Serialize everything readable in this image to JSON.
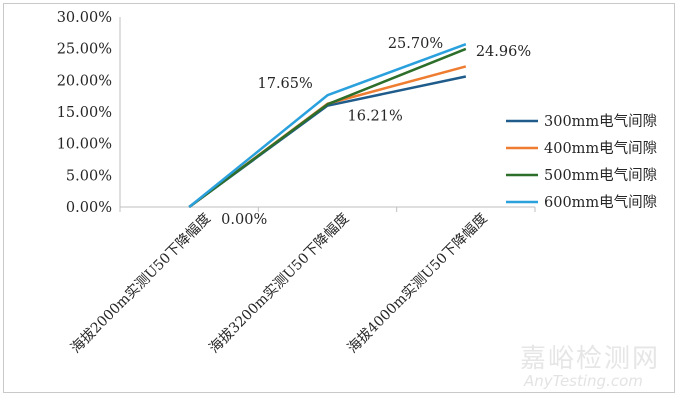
{
  "chart_data": {
    "type": "line",
    "categories": [
      "海拔2000m实测U50下降幅度",
      "海拔3200m实测U50下降幅度",
      "海拔4000m实测U50下降幅度"
    ],
    "series": [
      {
        "name": "300mm电气间隙",
        "values": [
          0.0,
          16.0,
          20.6
        ],
        "color": "#1f5c8b"
      },
      {
        "name": "400mm电气间隙",
        "values": [
          0.0,
          16.3,
          22.2
        ],
        "color": "#ee7d31"
      },
      {
        "name": "500mm电气间隙",
        "values": [
          0.0,
          16.21,
          24.96
        ],
        "color": "#2c6e2a"
      },
      {
        "name": "600mm电气间隙",
        "values": [
          0.0,
          17.65,
          25.7
        ],
        "color": "#2aa0dd"
      }
    ],
    "y_ticks": [
      "0.00%",
      "5.00%",
      "10.00%",
      "15.00%",
      "20.00%",
      "25.00%",
      "30.00%"
    ],
    "ylim": [
      0,
      30
    ],
    "legend_position": "right",
    "data_labels": [
      {
        "text": "0.00%",
        "category": 0,
        "value": 0.0
      },
      {
        "text": "17.65%",
        "category": 1,
        "value": 17.65
      },
      {
        "text": "16.21%",
        "category": 1,
        "value": 16.21
      },
      {
        "text": "25.70%",
        "category": 2,
        "value": 25.7
      },
      {
        "text": "24.96%",
        "category": 2,
        "value": 24.96
      }
    ]
  },
  "watermark": {
    "cn": "嘉峪检测网",
    "en": "AnyTesting.com"
  }
}
